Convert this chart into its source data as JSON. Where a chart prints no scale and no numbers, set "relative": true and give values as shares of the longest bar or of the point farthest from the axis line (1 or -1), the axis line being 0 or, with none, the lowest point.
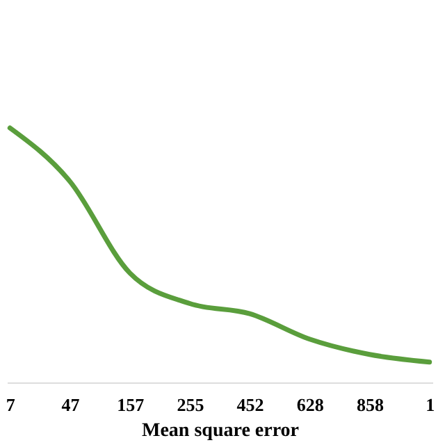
{
  "chart_data": {
    "type": "line",
    "relative": true,
    "xlabel": "Mean square error",
    "categories": [
      "7",
      "47",
      "157",
      "255",
      "452",
      "628",
      "858",
      "1"
    ],
    "series": [
      {
        "color": "#5a9e3c",
        "values": [
          1,
          0.79,
          0.43,
          0.31,
          0.27,
          0.17,
          0.11,
          0.08
        ]
      }
    ],
    "grid": false,
    "marker": "none",
    "line_style": "solid"
  }
}
